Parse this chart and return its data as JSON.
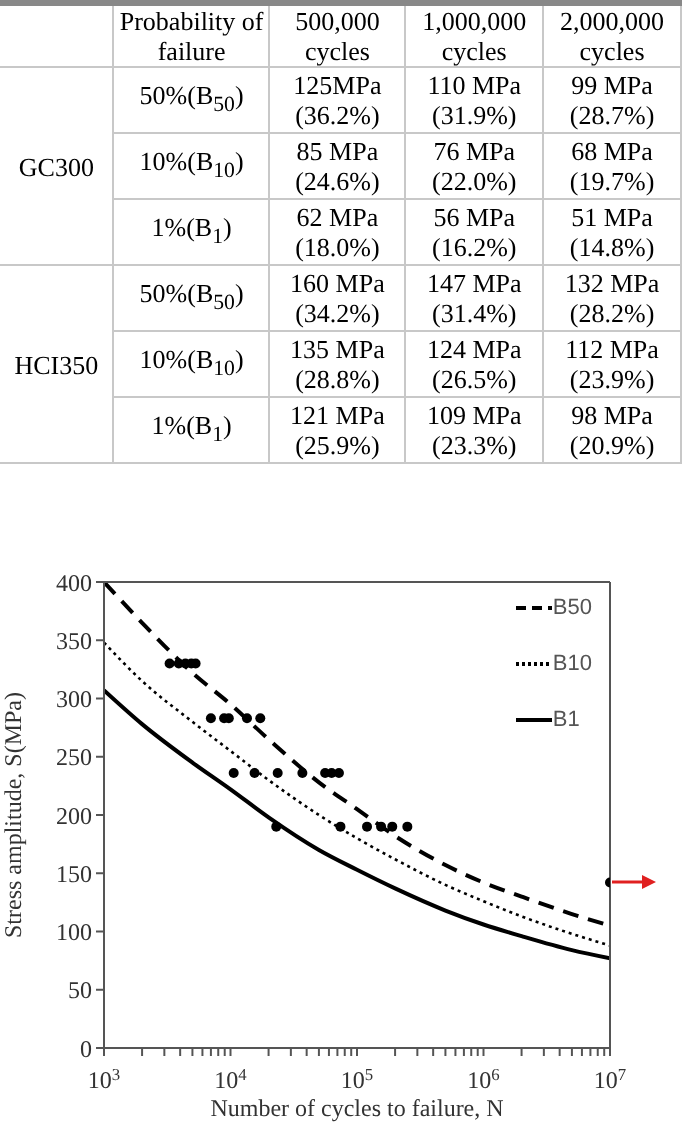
{
  "chart_data": [
    {
      "type": "other",
      "categories": [
        "Probability of failure",
        "500,000 cycles",
        "1,000,000 cycles",
        "2,000,000 cycles"
      ],
      "y_categories": [
        "GC300",
        "HCI350"
      ],
      "y2_categories": [
        "50%(B$_{50}$)",
        "10%(B$_{10}$)",
        "1%(B$_{1}$)",
        "50%(B$_{50}$)",
        "10%(B$_{10}$)",
        "1%(B$_{1}$)"
      ],
      "cell_labels": [
        [
          "125MPa (36.2%)",
          "110 MPa (31.9%)",
          "99 MPa (28.7%)"
        ],
        [
          "85 MPa (24.6%)",
          "76 MPa (22.0%)",
          "68 MPa (19.7%)"
        ],
        [
          "62 MPa (18.0%)",
          "56 MPa (16.2%)",
          "51 MPa (14.8%)"
        ],
        [
          "160 MPa (34.2%)",
          "147 MPa (31.4%)",
          "132 MPa (28.2%)"
        ],
        [
          "135 MPa (28.8%)",
          "124 MPa (26.5%)",
          "112 MPa (23.9%)"
        ],
        [
          "121 MPa (25.9%)",
          "109 MPa (23.3%)",
          "98 MPa (20.9%)"
        ]
      ]
    },
    {
      "type": "line",
      "xlabel": "Number of cycles to failure, N",
      "ylabel": "Stress amplitude, S(MPa)",
      "log": "x",
      "legend": "top right",
      "xlim": [
        1000,
        10000000
      ],
      "ylim": [
        0,
        400
      ],
      "yticks": [
        0,
        50,
        100,
        150,
        200,
        250,
        300,
        350,
        400
      ],
      "xticks": [
        {
          "value": 1000,
          "label": "10$^{3}$"
        },
        {
          "value": 2000,
          "label": null
        },
        {
          "value": 3000,
          "label": null
        },
        {
          "value": 4000,
          "label": null
        },
        {
          "value": 5000,
          "label": null
        },
        {
          "value": 6000,
          "label": null
        },
        {
          "value": 7000,
          "label": null
        },
        {
          "value": 8000,
          "label": null
        },
        {
          "value": 9000,
          "label": null
        },
        {
          "value": 10000,
          "label": "10$^{4}$"
        },
        {
          "value": 20000,
          "label": null
        },
        {
          "value": 30000,
          "label": null
        },
        {
          "value": 40000,
          "label": null
        },
        {
          "value": 50000,
          "label": null
        },
        {
          "value": 60000,
          "label": null
        },
        {
          "value": 70000,
          "label": null
        },
        {
          "value": 80000,
          "label": null
        },
        {
          "value": 90000,
          "label": null
        },
        {
          "value": 100000,
          "label": "10$^{5}$"
        },
        {
          "value": 200000,
          "label": null
        },
        {
          "value": 300000,
          "label": null
        },
        {
          "value": 400000,
          "label": null
        },
        {
          "value": 500000,
          "label": null
        },
        {
          "value": 600000,
          "label": null
        },
        {
          "value": 700000,
          "label": null
        },
        {
          "value": 800000,
          "label": null
        },
        {
          "value": 900000,
          "label": null
        },
        {
          "value": 1000000,
          "label": "10$^{6}$"
        },
        {
          "value": 2000000,
          "label": null
        },
        {
          "value": 3000000,
          "label": null
        },
        {
          "value": 4000000,
          "label": null
        },
        {
          "value": 5000000,
          "label": null
        },
        {
          "value": 6000000,
          "label": null
        },
        {
          "value": 7000000,
          "label": null
        },
        {
          "value": 8000000,
          "label": null
        },
        {
          "value": 9000000,
          "label": null
        },
        {
          "value": 10000000,
          "label": "10$^{7}$"
        }
      ],
      "series": [
        {
          "name": "B50",
          "color": "#000000",
          "line_style": "dashed",
          "x": [
            1000,
            2000,
            5000,
            10000,
            20000,
            50000,
            100000,
            200000,
            500000,
            1000000,
            2000000,
            5000000,
            10000000
          ],
          "values": [
            400,
            365,
            322,
            295,
            265,
            228,
            205,
            182,
            157,
            142,
            130,
            115,
            105
          ]
        },
        {
          "name": "B10",
          "color": "#000000",
          "line_style": "dotted",
          "x": [
            1000,
            2000,
            5000,
            10000,
            20000,
            50000,
            100000,
            200000,
            500000,
            1000000,
            2000000,
            5000000,
            10000000
          ],
          "values": [
            348,
            315,
            280,
            255,
            230,
            200,
            180,
            162,
            140,
            126,
            113,
            98,
            88
          ]
        },
        {
          "name": "B1",
          "color": "#000000",
          "line_style": "solid",
          "x": [
            1000,
            2000,
            5000,
            10000,
            20000,
            50000,
            100000,
            200000,
            500000,
            1000000,
            2000000,
            5000000,
            10000000
          ],
          "values": [
            307,
            278,
            245,
            222,
            198,
            170,
            153,
            137,
            118,
            106,
            96,
            84,
            77
          ]
        },
        {
          "type": "scatter",
          "color": "#000000",
          "marker": "circle",
          "x": [
            3300,
            3900,
            4400,
            4900,
            5300,
            7000,
            8900,
            9700,
            13500,
            17200,
            10600,
            15500,
            23600,
            37000,
            56000,
            63000,
            72000,
            23000,
            74000,
            120000,
            155000,
            190000,
            250000,
            10000000
          ],
          "values": [
            330,
            330,
            330,
            330,
            330,
            283,
            283,
            283,
            283,
            283,
            236,
            236,
            236,
            236,
            236,
            236,
            236,
            190,
            190,
            190,
            190,
            190,
            190,
            142
          ]
        }
      ]
    }
  ]
}
